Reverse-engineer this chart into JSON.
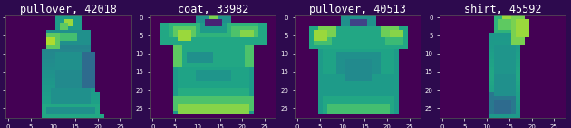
{
  "panels": [
    {
      "title": "pullover, 42018",
      "type": "pullover1"
    },
    {
      "title": "coat, 33982",
      "type": "coat"
    },
    {
      "title": "pullover, 40513",
      "type": "pullover2"
    },
    {
      "title": "shirt, 45592",
      "type": "shirt"
    }
  ],
  "cmap": "viridis",
  "bg_color": "#2d0a4e",
  "title_fontsize": 8.5,
  "tick_fontsize": 5,
  "figsize": [
    6.3,
    1.42
  ],
  "dpi": 100
}
